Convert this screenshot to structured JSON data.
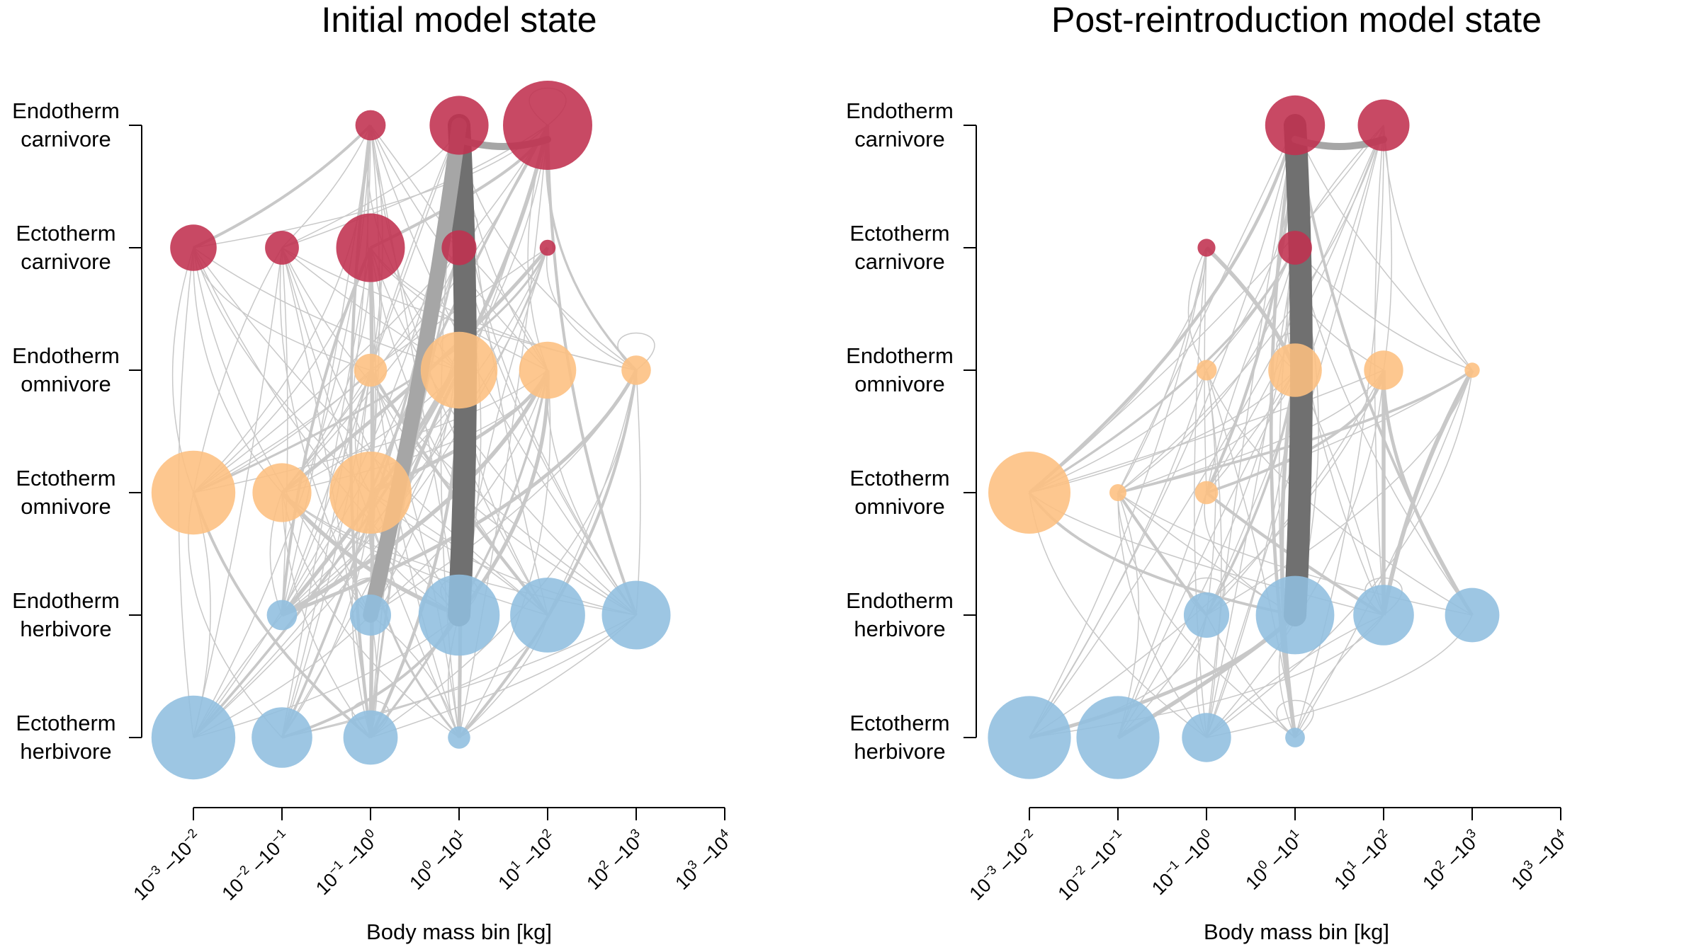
{
  "chart_data": [
    {
      "type": "network",
      "title": "Initial model state",
      "xlabel": "Body mass bin [kg]",
      "x_categories": [
        {
          "base": "10",
          "e1": "−3",
          "base2": "10",
          "e2": "−2"
        },
        {
          "base": "10",
          "e1": "−2",
          "base2": "10",
          "e2": "−1"
        },
        {
          "base": "10",
          "e1": "−1",
          "base2": "10",
          "e2": "0"
        },
        {
          "base": "10",
          "e1": "0",
          "base2": "10",
          "e2": "1"
        },
        {
          "base": "10",
          "e1": "1",
          "base2": "10",
          "e2": "2"
        },
        {
          "base": "10",
          "e1": "2",
          "base2": "10",
          "e2": "3"
        },
        {
          "base": "10",
          "e1": "3",
          "base2": "10",
          "e2": "4"
        }
      ],
      "rows": [
        {
          "line1": "Endotherm",
          "line2": "carnivore"
        },
        {
          "line1": "Ectotherm",
          "line2": "carnivore"
        },
        {
          "line1": "Endotherm",
          "line2": "omnivore"
        },
        {
          "line1": "Ectotherm",
          "line2": "omnivore"
        },
        {
          "line1": "Endotherm",
          "line2": "herbivore"
        },
        {
          "line1": "Ectotherm",
          "line2": "herbivore"
        }
      ],
      "row_colors": [
        "#c0304f",
        "#c0304f",
        "#fdbf7f",
        "#fdbf7f",
        "#90bedf",
        "#90bedf"
      ],
      "link_color": "#c8c8c8",
      "strong_link_color": "#707070",
      "nodes": [
        {
          "row": 0,
          "bin": 2,
          "size": 0.34
        },
        {
          "row": 0,
          "bin": 3,
          "size": 0.66
        },
        {
          "row": 0,
          "bin": 4,
          "size": 1.0
        },
        {
          "row": 1,
          "bin": 0,
          "size": 0.52
        },
        {
          "row": 1,
          "bin": 1,
          "size": 0.38
        },
        {
          "row": 1,
          "bin": 2,
          "size": 0.77
        },
        {
          "row": 1,
          "bin": 3,
          "size": 0.39
        },
        {
          "row": 1,
          "bin": 4,
          "size": 0.18
        },
        {
          "row": 2,
          "bin": 2,
          "size": 0.37
        },
        {
          "row": 2,
          "bin": 3,
          "size": 0.86
        },
        {
          "row": 2,
          "bin": 4,
          "size": 0.64
        },
        {
          "row": 2,
          "bin": 5,
          "size": 0.33
        },
        {
          "row": 3,
          "bin": 0,
          "size": 0.94
        },
        {
          "row": 3,
          "bin": 1,
          "size": 0.66
        },
        {
          "row": 3,
          "bin": 2,
          "size": 0.92
        },
        {
          "row": 4,
          "bin": 1,
          "size": 0.34
        },
        {
          "row": 4,
          "bin": 2,
          "size": 0.46
        },
        {
          "row": 4,
          "bin": 3,
          "size": 0.91
        },
        {
          "row": 4,
          "bin": 4,
          "size": 0.84
        },
        {
          "row": 4,
          "bin": 5,
          "size": 0.77
        },
        {
          "row": 5,
          "bin": 0,
          "size": 0.94
        },
        {
          "row": 5,
          "bin": 1,
          "size": 0.68
        },
        {
          "row": 5,
          "bin": 2,
          "size": 0.61
        },
        {
          "row": 5,
          "bin": 3,
          "size": 0.25
        }
      ],
      "strong_links": [
        {
          "from": [
            4,
            3
          ],
          "to": [
            0,
            3
          ],
          "weight": 1.0
        },
        {
          "from": [
            4,
            2
          ],
          "to": [
            0,
            3
          ],
          "weight": 0.6
        },
        {
          "from": [
            0,
            3
          ],
          "to": [
            0,
            4
          ],
          "weight": 0.55
        }
      ]
    },
    {
      "type": "network",
      "title": "Post-reintroduction model state",
      "xlabel": "Body mass bin [kg]",
      "x_categories": [
        {
          "base": "10",
          "e1": "−3",
          "base2": "10",
          "e2": "−2"
        },
        {
          "base": "10",
          "e1": "−2",
          "base2": "10",
          "e2": "−1"
        },
        {
          "base": "10",
          "e1": "−1",
          "base2": "10",
          "e2": "0"
        },
        {
          "base": "10",
          "e1": "0",
          "base2": "10",
          "e2": "1"
        },
        {
          "base": "10",
          "e1": "1",
          "base2": "10",
          "e2": "2"
        },
        {
          "base": "10",
          "e1": "2",
          "base2": "10",
          "e2": "3"
        },
        {
          "base": "10",
          "e1": "3",
          "base2": "10",
          "e2": "4"
        }
      ],
      "rows": [
        {
          "line1": "Endotherm",
          "line2": "carnivore"
        },
        {
          "line1": "Ectotherm",
          "line2": "carnivore"
        },
        {
          "line1": "Endotherm",
          "line2": "omnivore"
        },
        {
          "line1": "Ectotherm",
          "line2": "omnivore"
        },
        {
          "line1": "Endotherm",
          "line2": "herbivore"
        },
        {
          "line1": "Ectotherm",
          "line2": "herbivore"
        }
      ],
      "row_colors": [
        "#c0304f",
        "#c0304f",
        "#fdbf7f",
        "#fdbf7f",
        "#90bedf",
        "#90bedf"
      ],
      "link_color": "#c8c8c8",
      "strong_link_color": "#707070",
      "nodes": [
        {
          "row": 0,
          "bin": 3,
          "size": 0.67
        },
        {
          "row": 0,
          "bin": 4,
          "size": 0.58
        },
        {
          "row": 1,
          "bin": 2,
          "size": 0.2
        },
        {
          "row": 1,
          "bin": 3,
          "size": 0.38
        },
        {
          "row": 2,
          "bin": 2,
          "size": 0.23
        },
        {
          "row": 2,
          "bin": 3,
          "size": 0.6
        },
        {
          "row": 2,
          "bin": 4,
          "size": 0.44
        },
        {
          "row": 2,
          "bin": 5,
          "size": 0.17
        },
        {
          "row": 3,
          "bin": 0,
          "size": 0.92
        },
        {
          "row": 3,
          "bin": 1,
          "size": 0.19
        },
        {
          "row": 3,
          "bin": 2,
          "size": 0.26
        },
        {
          "row": 4,
          "bin": 2,
          "size": 0.51
        },
        {
          "row": 4,
          "bin": 3,
          "size": 0.88
        },
        {
          "row": 4,
          "bin": 4,
          "size": 0.68
        },
        {
          "row": 4,
          "bin": 5,
          "size": 0.61
        },
        {
          "row": 5,
          "bin": 0,
          "size": 0.93
        },
        {
          "row": 5,
          "bin": 1,
          "size": 0.93
        },
        {
          "row": 5,
          "bin": 2,
          "size": 0.55
        },
        {
          "row": 5,
          "bin": 3,
          "size": 0.22
        }
      ],
      "strong_links": [
        {
          "from": [
            4,
            3
          ],
          "to": [
            0,
            3
          ],
          "weight": 1.0
        },
        {
          "from": [
            0,
            3
          ],
          "to": [
            0,
            4
          ],
          "weight": 0.5
        }
      ]
    }
  ]
}
